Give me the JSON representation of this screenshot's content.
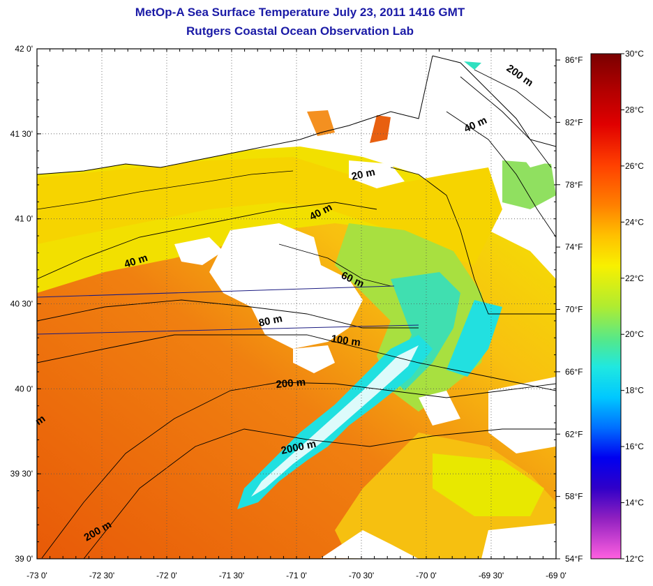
{
  "title": "MetOp-A Sea Surface Temperature July 23, 2011 1416 GMT",
  "subtitle": "Rutgers Coastal Ocean Observation Lab",
  "map": {
    "lat_range": [
      39.0,
      42.0
    ],
    "lon_range": [
      -73.0,
      -69.0
    ],
    "lat_ticks": [
      "42 0'",
      "41 30'",
      "41 0'",
      "40 30'",
      "40 0'",
      "39 30'",
      "39 0'"
    ],
    "lon_ticks": [
      "-73 0'",
      "-72 30'",
      "-72 0'",
      "-71 30'",
      "-71 0'",
      "-70 30'",
      "-70 0'",
      "-69 30'",
      "-69 0'"
    ],
    "fahrenheit_ticks": [
      "86°F",
      "82°F",
      "78°F",
      "74°F",
      "70°F",
      "66°F",
      "62°F",
      "58°F",
      "54°F"
    ],
    "grid": "dotted",
    "colors": {
      "warm": "#e8640e",
      "yellow": "#f2e000",
      "green": "#a6e23a",
      "cyan": "#20e0e8",
      "land": "#ffffff",
      "cloud": "#ffffff"
    }
  },
  "bathymetry_labels": [
    "200 m",
    "40 m",
    "20 m",
    "40 m",
    "40 m",
    "60 m",
    "80 m",
    "100 m",
    "200 m",
    "2000 m",
    "200 m",
    "m"
  ],
  "colorbar": {
    "labels": [
      "30°C",
      "28°C",
      "26°C",
      "24°C",
      "22°C",
      "20°C",
      "18°C",
      "16°C",
      "14°C",
      "12°C"
    ],
    "range_c": [
      12,
      30
    ],
    "stops": [
      "#7a0000",
      "#d40000",
      "#ff3000",
      "#ff7a00",
      "#ffb000",
      "#f6f000",
      "#a8ec30",
      "#2ce6c8",
      "#00c8ff",
      "#0060ff",
      "#0000e6",
      "#4000c0",
      "#a020c0",
      "#ff60e0"
    ]
  }
}
